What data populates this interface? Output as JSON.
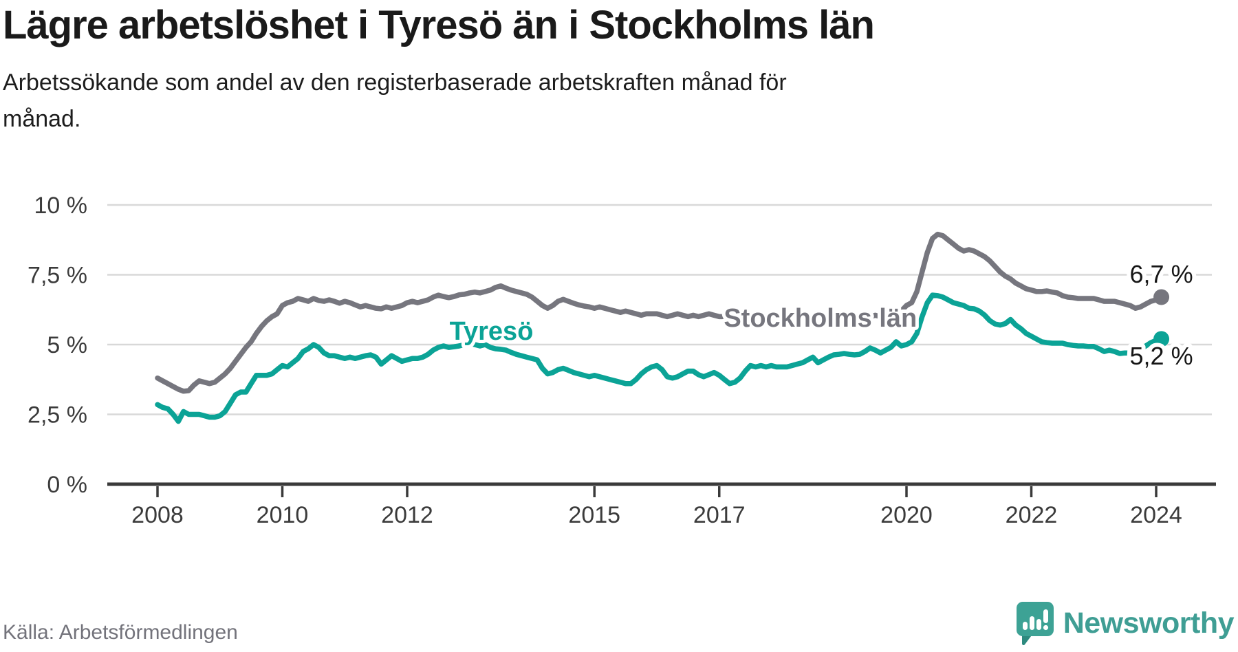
{
  "title": "Lägre arbetslöshet i Tyresö än i Stockholms län",
  "subtitle_lines": [
    "Arbetssökande som andel av den registerbaserade arbetskraften månad för",
    "månad."
  ],
  "source": "Källa: Arbetsförmedlingen",
  "brand": {
    "name": "Newsworthy"
  },
  "colors": {
    "tyreso": "#0ba396",
    "stockholm": "#76767e",
    "grid": "#d8d8d8",
    "axis": "#3a3a3a",
    "tick_label": "#3b3b3b",
    "value_label": "#161616",
    "brand_teal": "#3f9e94"
  },
  "chart_data": {
    "type": "line",
    "title": "Lägre arbetslöshet i Tyresö än i Stockholms län",
    "subtitle": "Arbetssökande som andel av den registerbaserade arbetskraften månad för månad.",
    "x_unit": "month",
    "x_start": "2008-01",
    "x_end": "2024-02",
    "ylabel": "",
    "xlabel": "",
    "ylim": [
      0,
      10
    ],
    "grid": true,
    "legend_position": "inline-labels",
    "y_ticks": [
      {
        "value": 10,
        "label": "10 %"
      },
      {
        "value": 7.5,
        "label": "7,5 %"
      },
      {
        "value": 5,
        "label": "5 %"
      },
      {
        "value": 2.5,
        "label": "2,5 %"
      },
      {
        "value": 0,
        "label": "0 %"
      }
    ],
    "x_ticks": [
      {
        "year": 2008,
        "label": "2008"
      },
      {
        "year": 2010,
        "label": "2010"
      },
      {
        "year": 2012,
        "label": "2012"
      },
      {
        "year": 2015,
        "label": "2015"
      },
      {
        "year": 2017,
        "label": "2017"
      },
      {
        "year": 2020,
        "label": "2020"
      },
      {
        "year": 2022,
        "label": "2022"
      },
      {
        "year": 2024,
        "label": "2024"
      }
    ],
    "series": [
      {
        "name": "Stockholms län",
        "color": "#76767e",
        "end_label": "6,7 %",
        "end_label_position": "above",
        "label_anchor": {
          "year": 2018.62,
          "value": 5.64
        },
        "values": [
          3.8,
          3.7,
          3.6,
          3.5,
          3.4,
          3.33,
          3.35,
          3.55,
          3.7,
          3.65,
          3.6,
          3.65,
          3.8,
          3.95,
          4.15,
          4.4,
          4.65,
          4.9,
          5.1,
          5.4,
          5.65,
          5.85,
          6.0,
          6.1,
          6.4,
          6.5,
          6.55,
          6.65,
          6.6,
          6.55,
          6.65,
          6.58,
          6.55,
          6.6,
          6.55,
          6.48,
          6.55,
          6.5,
          6.42,
          6.35,
          6.4,
          6.35,
          6.3,
          6.28,
          6.35,
          6.3,
          6.35,
          6.4,
          6.5,
          6.55,
          6.5,
          6.55,
          6.6,
          6.7,
          6.77,
          6.72,
          6.68,
          6.72,
          6.78,
          6.8,
          6.85,
          6.88,
          6.85,
          6.9,
          6.95,
          7.05,
          7.1,
          7.02,
          6.95,
          6.9,
          6.85,
          6.8,
          6.7,
          6.55,
          6.4,
          6.3,
          6.4,
          6.55,
          6.62,
          6.55,
          6.48,
          6.42,
          6.38,
          6.35,
          6.3,
          6.35,
          6.3,
          6.25,
          6.2,
          6.15,
          6.2,
          6.15,
          6.1,
          6.05,
          6.1,
          6.1,
          6.1,
          6.05,
          6.0,
          6.05,
          6.1,
          6.05,
          6.0,
          6.05,
          6.0,
          6.05,
          6.1,
          6.05,
          6.0,
          6.0,
          5.95,
          5.95,
          5.9,
          5.95,
          6.0,
          5.95,
          5.9,
          5.9,
          5.95,
          5.95,
          5.95,
          5.9,
          5.85,
          5.9,
          5.95,
          5.9,
          5.95,
          6.0,
          5.95,
          5.9,
          5.95,
          6.0,
          6.0,
          5.95,
          5.9,
          5.95,
          6.0,
          6.0,
          6.05,
          6.0,
          5.95,
          6.0,
          6.1,
          6.2,
          6.4,
          6.5,
          6.9,
          7.6,
          8.3,
          8.8,
          8.95,
          8.9,
          8.75,
          8.6,
          8.45,
          8.35,
          8.4,
          8.35,
          8.25,
          8.15,
          8.0,
          7.8,
          7.6,
          7.45,
          7.35,
          7.2,
          7.1,
          7.0,
          6.95,
          6.9,
          6.9,
          6.92,
          6.88,
          6.85,
          6.75,
          6.7,
          6.68,
          6.65,
          6.65,
          6.65,
          6.65,
          6.6,
          6.55,
          6.55,
          6.55,
          6.5,
          6.45,
          6.4,
          6.3,
          6.35,
          6.45,
          6.55,
          6.6,
          6.7
        ]
      },
      {
        "name": "Tyresö",
        "color": "#0ba396",
        "end_label": "5,2 %",
        "end_label_position": "below",
        "label_anchor": {
          "year": 2013.35,
          "value": 5.17
        },
        "values": [
          2.85,
          2.75,
          2.7,
          2.5,
          2.25,
          2.6,
          2.5,
          2.5,
          2.5,
          2.45,
          2.4,
          2.4,
          2.45,
          2.6,
          2.9,
          3.2,
          3.3,
          3.3,
          3.6,
          3.9,
          3.9,
          3.9,
          3.95,
          4.1,
          4.25,
          4.2,
          4.35,
          4.5,
          4.75,
          4.85,
          5.0,
          4.9,
          4.7,
          4.6,
          4.6,
          4.55,
          4.5,
          4.55,
          4.5,
          4.55,
          4.6,
          4.63,
          4.55,
          4.3,
          4.45,
          4.6,
          4.5,
          4.4,
          4.45,
          4.5,
          4.5,
          4.55,
          4.65,
          4.8,
          4.9,
          4.95,
          4.9,
          4.92,
          4.95,
          5.0,
          5.05,
          5.0,
          4.95,
          5.0,
          4.9,
          4.85,
          4.83,
          4.8,
          4.72,
          4.65,
          4.6,
          4.55,
          4.5,
          4.45,
          4.15,
          3.95,
          4.0,
          4.1,
          4.15,
          4.08,
          4.0,
          3.95,
          3.9,
          3.85,
          3.9,
          3.85,
          3.8,
          3.75,
          3.7,
          3.65,
          3.6,
          3.6,
          3.75,
          3.95,
          4.1,
          4.2,
          4.25,
          4.1,
          3.85,
          3.8,
          3.85,
          3.95,
          4.05,
          4.05,
          3.92,
          3.85,
          3.92,
          4.0,
          3.9,
          3.75,
          3.6,
          3.65,
          3.8,
          4.05,
          4.25,
          4.2,
          4.25,
          4.2,
          4.25,
          4.2,
          4.2,
          4.2,
          4.25,
          4.3,
          4.35,
          4.45,
          4.55,
          4.35,
          4.45,
          4.55,
          4.63,
          4.65,
          4.68,
          4.65,
          4.63,
          4.65,
          4.75,
          4.88,
          4.8,
          4.7,
          4.8,
          4.9,
          5.1,
          4.95,
          5.0,
          5.1,
          5.4,
          6.0,
          6.5,
          6.77,
          6.75,
          6.7,
          6.6,
          6.5,
          6.45,
          6.4,
          6.3,
          6.28,
          6.2,
          6.06,
          5.86,
          5.74,
          5.7,
          5.75,
          5.9,
          5.7,
          5.57,
          5.4,
          5.3,
          5.2,
          5.1,
          5.07,
          5.05,
          5.05,
          5.05,
          5.0,
          4.97,
          4.95,
          4.95,
          4.93,
          4.93,
          4.85,
          4.75,
          4.8,
          4.75,
          4.68,
          4.7,
          4.7,
          4.75,
          4.83,
          4.95,
          5.07,
          5.15,
          5.2
        ]
      }
    ]
  }
}
